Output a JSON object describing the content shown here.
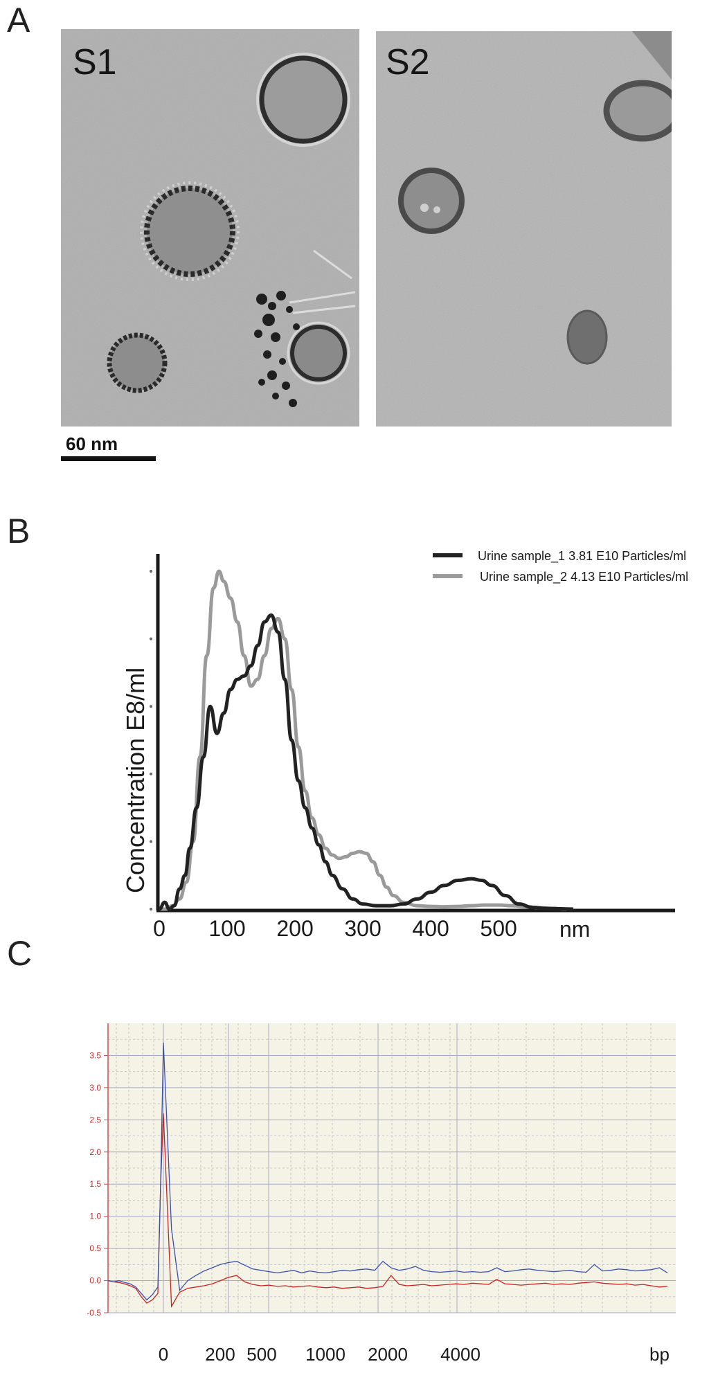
{
  "panels": {
    "a": {
      "letter": "A"
    },
    "b": {
      "letter": "B"
    },
    "c": {
      "letter": "C"
    }
  },
  "panel_a": {
    "images": [
      {
        "label": "S1"
      },
      {
        "label": "S2"
      }
    ],
    "scale_bar": {
      "label": "60 nm",
      "value_nm": 60
    }
  },
  "chart_data": [
    {
      "type": "line",
      "title": "",
      "xlabel": "nm",
      "ylabel": "Concentration E8/ml",
      "xlim": [
        0,
        760
      ],
      "ylim": [
        0,
        1
      ],
      "x_ticks": [
        "0",
        "100",
        "200",
        "300",
        "400",
        "500"
      ],
      "x_tick_values": [
        0,
        100,
        200,
        300,
        400,
        500
      ],
      "legend_position": "top-right",
      "series": [
        {
          "name": "Urine sample_1 3.81 E10 Particles/ml",
          "color": "#222222",
          "x": [
            0,
            8,
            15,
            22,
            30,
            38,
            45,
            55,
            65,
            75,
            85,
            95,
            105,
            115,
            125,
            135,
            145,
            155,
            165,
            175,
            185,
            195,
            205,
            215,
            225,
            235,
            245,
            255,
            270,
            285,
            300,
            320,
            340,
            360,
            380,
            400,
            420,
            440,
            460,
            475,
            490,
            510,
            530,
            550,
            570,
            590,
            610
          ],
          "y": [
            0.0,
            0.02,
            0.0,
            0.01,
            0.06,
            0.1,
            0.18,
            0.3,
            0.45,
            0.6,
            0.52,
            0.58,
            0.65,
            0.68,
            0.69,
            0.72,
            0.78,
            0.85,
            0.87,
            0.82,
            0.68,
            0.5,
            0.38,
            0.3,
            0.24,
            0.19,
            0.14,
            0.1,
            0.06,
            0.03,
            0.015,
            0.01,
            0.01,
            0.015,
            0.03,
            0.05,
            0.07,
            0.085,
            0.09,
            0.085,
            0.07,
            0.04,
            0.015,
            0.005,
            0.002,
            0.001,
            0.0
          ]
        },
        {
          "name": "Urine sample_2 4.13 E10 Particles/ml",
          "color": "#9a9a9a",
          "x": [
            0,
            10,
            20,
            30,
            40,
            50,
            60,
            70,
            80,
            88,
            95,
            105,
            115,
            125,
            135,
            145,
            155,
            165,
            175,
            185,
            195,
            205,
            215,
            225,
            235,
            245,
            255,
            265,
            275,
            285,
            295,
            305,
            315,
            325,
            335,
            345,
            360,
            380,
            400,
            420,
            440,
            460,
            480,
            500,
            520,
            540,
            560,
            580,
            600
          ],
          "y": [
            0.0,
            0.0,
            0.01,
            0.03,
            0.08,
            0.2,
            0.45,
            0.75,
            0.95,
            1.0,
            0.97,
            0.92,
            0.85,
            0.75,
            0.66,
            0.68,
            0.75,
            0.83,
            0.86,
            0.8,
            0.65,
            0.48,
            0.35,
            0.27,
            0.22,
            0.18,
            0.16,
            0.15,
            0.155,
            0.165,
            0.17,
            0.165,
            0.14,
            0.1,
            0.065,
            0.04,
            0.02,
            0.01,
            0.008,
            0.007,
            0.008,
            0.01,
            0.012,
            0.012,
            0.01,
            0.007,
            0.004,
            0.002,
            0.0
          ]
        }
      ]
    },
    {
      "type": "line",
      "title": "",
      "xlabel": "bp",
      "ylabel": "",
      "ylim": [
        -0.5,
        4.0
      ],
      "y_ticks": [
        "-0.5",
        "0.0",
        "0.5",
        "1.0",
        "1.5",
        "2.0",
        "2.5",
        "3.0",
        "3.5"
      ],
      "y_tick_values": [
        -0.5,
        0.0,
        0.5,
        1.0,
        1.5,
        2.0,
        2.5,
        3.0,
        3.5
      ],
      "x_ticks": [
        "0",
        "200",
        "500",
        "1000",
        "2000",
        "4000"
      ],
      "grid": true,
      "background": "#f4f3e6",
      "series": [
        {
          "color": "#3a4fb0",
          "y": [
            0.0,
            -0.02,
            0.0,
            -0.03,
            -0.05,
            -0.1,
            -0.2,
            -0.3,
            -0.22,
            -0.1,
            3.7,
            0.8,
            -0.15,
            0.0,
            0.08,
            0.15,
            0.2,
            0.25,
            0.28,
            0.3,
            0.24,
            0.18,
            0.16,
            0.14,
            0.12,
            0.14,
            0.16,
            0.12,
            0.15,
            0.13,
            0.12,
            0.14,
            0.16,
            0.15,
            0.17,
            0.18,
            0.16,
            0.3,
            0.2,
            0.16,
            0.18,
            0.22,
            0.16,
            0.14,
            0.13,
            0.14,
            0.15,
            0.13,
            0.14,
            0.13,
            0.14,
            0.2,
            0.14,
            0.15,
            0.17,
            0.18,
            0.16,
            0.15,
            0.14,
            0.15,
            0.16,
            0.14,
            0.13,
            0.25,
            0.15,
            0.16,
            0.18,
            0.17,
            0.15,
            0.16,
            0.17,
            0.2,
            0.12
          ]
        },
        {
          "color": "#cc2222",
          "y": [
            0.0,
            -0.02,
            -0.03,
            -0.05,
            -0.08,
            -0.12,
            -0.25,
            -0.35,
            -0.3,
            -0.2,
            2.6,
            -0.4,
            -0.18,
            -0.12,
            -0.1,
            -0.08,
            -0.05,
            0.0,
            0.05,
            0.08,
            -0.02,
            -0.06,
            -0.08,
            -0.07,
            -0.09,
            -0.08,
            -0.1,
            -0.09,
            -0.08,
            -0.1,
            -0.11,
            -0.1,
            -0.12,
            -0.11,
            -0.1,
            -0.12,
            -0.11,
            -0.09,
            0.08,
            -0.06,
            -0.08,
            -0.07,
            -0.06,
            -0.08,
            -0.07,
            -0.06,
            -0.05,
            -0.06,
            -0.04,
            -0.05,
            -0.06,
            0.02,
            -0.05,
            -0.06,
            -0.07,
            -0.06,
            -0.05,
            -0.04,
            -0.06,
            -0.05,
            -0.06,
            -0.04,
            -0.03,
            -0.02,
            -0.04,
            -0.05,
            -0.06,
            -0.05,
            -0.07,
            -0.06,
            -0.08,
            -0.1,
            -0.09
          ]
        }
      ]
    }
  ]
}
